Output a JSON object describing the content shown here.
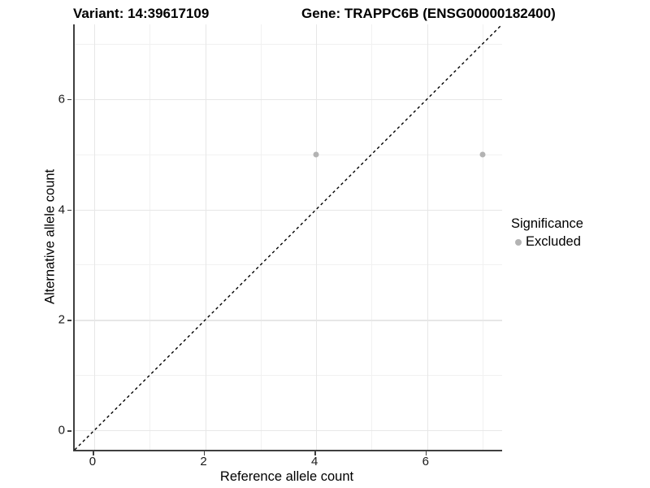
{
  "titles": {
    "left": "Variant: 14:39617109",
    "right": "Gene: TRAPPC6B (ENSG00000182400)"
  },
  "chart_data": {
    "type": "scatter",
    "title_left": "Variant: 14:39617109",
    "title_right": "Gene: TRAPPC6B (ENSG00000182400)",
    "xlabel": "Reference allele count",
    "ylabel": "Alternative allele count",
    "xlim": [
      -0.35,
      7.35
    ],
    "ylim": [
      -0.35,
      7.35
    ],
    "x_ticks": [
      0,
      2,
      4,
      6
    ],
    "y_ticks": [
      0,
      2,
      4,
      6
    ],
    "x_minor_gridlines": [
      1,
      3,
      5,
      7
    ],
    "y_minor_gridlines": [
      1,
      3,
      5,
      7
    ],
    "grid": true,
    "legend_position": "right",
    "reference_line": {
      "type": "identity",
      "style": "dashed",
      "color": "#000000"
    },
    "series": [
      {
        "name": "Excluded",
        "color": "#b3b3b3",
        "points": [
          {
            "x": 4,
            "y": 5
          },
          {
            "x": 7,
            "y": 5
          }
        ]
      }
    ],
    "legend": {
      "title": "Significance",
      "entries": [
        {
          "label": "Excluded",
          "color": "#b3b3b3"
        }
      ]
    }
  },
  "colors": {
    "point_gray": "#b3b3b3",
    "axis_line": "#3f3f3f",
    "grid_major": "#e7e7e7",
    "grid_minor": "#f1f1f1",
    "background": "#ffffff"
  }
}
